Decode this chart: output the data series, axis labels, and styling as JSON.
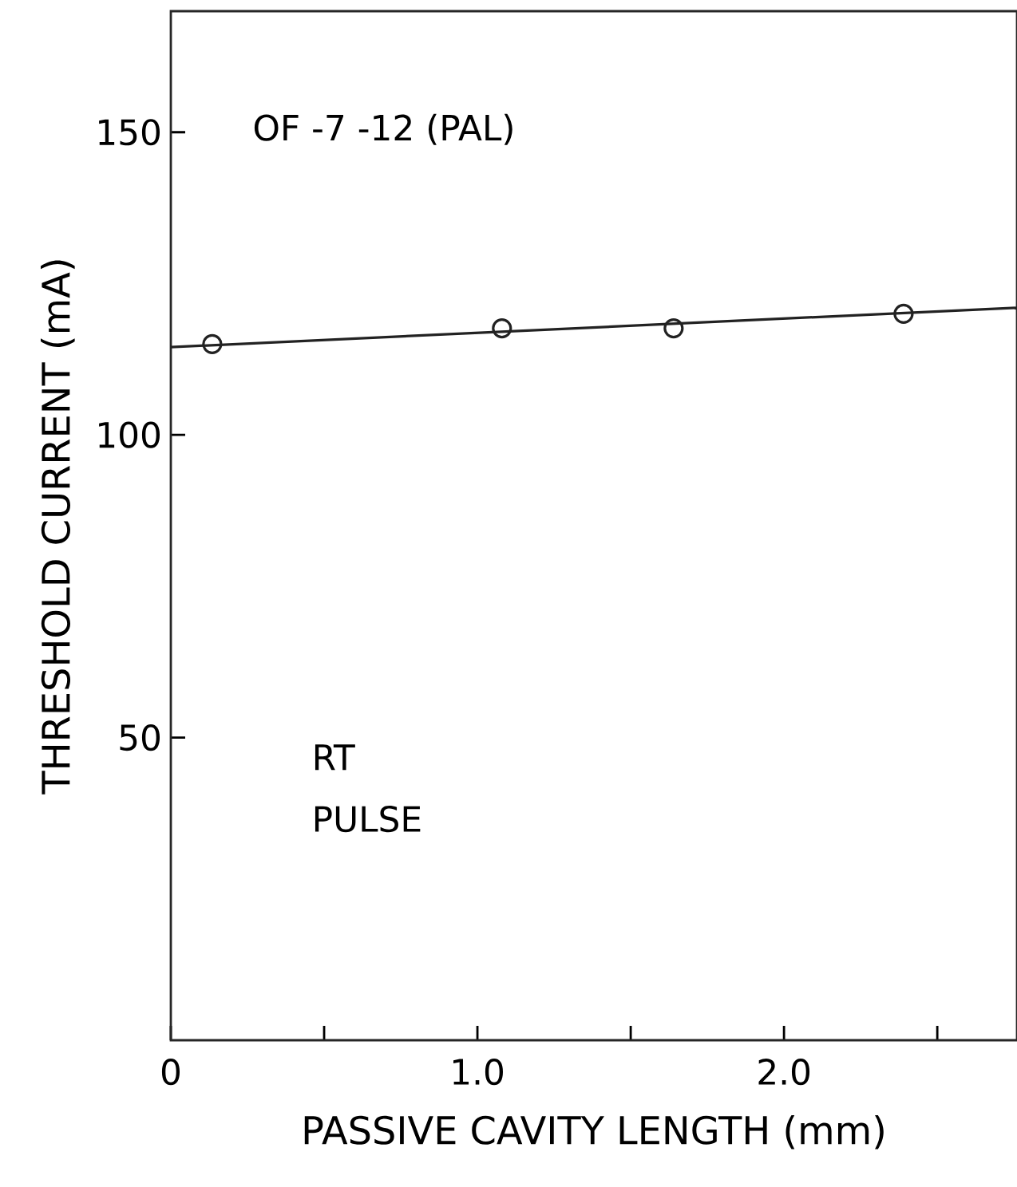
{
  "chart_data": {
    "type": "scatter",
    "xlabel": "PASSIVE CAVITY LENGTH (mm)",
    "ylabel": "THRESHOLD CURRENT (mA)",
    "xlim": [
      0,
      2.76
    ],
    "ylim": [
      0,
      170
    ],
    "xticks": [
      0,
      {
        "value": 0.5,
        "label": null
      },
      {
        "value": 1.0,
        "label": "1.0"
      },
      {
        "value": 1.5,
        "label": null
      },
      {
        "value": 2.0,
        "label": "2.0"
      },
      {
        "value": 2.5,
        "label": null
      }
    ],
    "yticks": [
      50,
      100,
      150
    ],
    "annotations": [
      "OF -7 -12 (PAL)",
      "RT",
      "PULSE"
    ],
    "series": [
      {
        "color": "#222222",
        "marker": "circle",
        "x": [
          0.135,
          1.08,
          1.64,
          2.39
        ],
        "values": [
          115.0,
          117.6,
          117.6,
          120.0
        ]
      },
      {
        "type": "line",
        "color": "#222222",
        "marker": "none",
        "line_style": "solid",
        "x": [
          0,
          2.76
        ],
        "values": [
          114.5,
          121.0
        ]
      }
    ]
  }
}
